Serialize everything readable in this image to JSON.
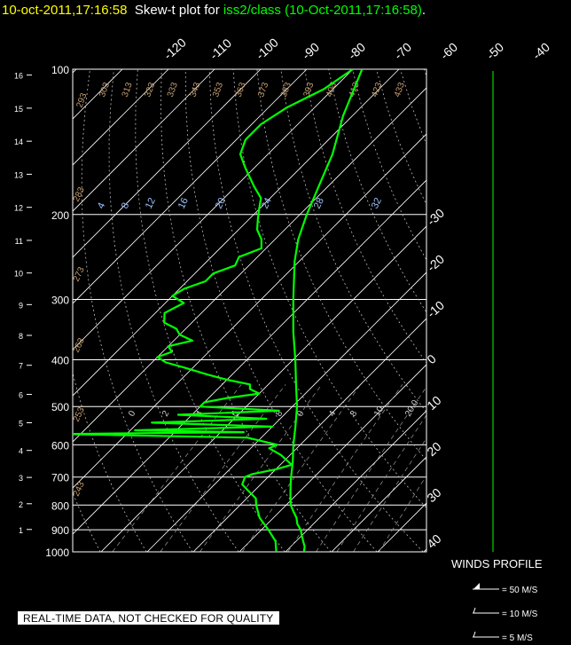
{
  "header": {
    "timestamp": "10-oct-2011,17:16:58",
    "plot_label": "Skew-t plot for",
    "source": "iss2/class (10-Oct-2011,17:16:58)",
    "end": "."
  },
  "quality_note": "REAL-TIME DATA, NOT CHECKED FOR QUALITY",
  "colors": {
    "background": "#000000",
    "grid": "#ffffff",
    "sounding": "#00ff00",
    "dry_adiabat_labels": "#c8a070",
    "mixing_ratio_labels": "#9fc4ff",
    "timestamp": "#ffff00"
  },
  "chart_data": {
    "type": "skew-t",
    "pressure_levels": [
      100,
      200,
      300,
      400,
      500,
      600,
      700,
      800,
      900,
      1000
    ],
    "height_ticks": [
      1,
      2,
      3,
      4,
      5,
      6,
      7,
      8,
      9,
      10,
      11,
      12,
      13,
      14,
      15,
      16
    ],
    "temperature_ticks": [
      -120,
      -110,
      -100,
      -90,
      -80,
      -70,
      -60,
      -50,
      -40,
      -30,
      -20,
      -10,
      0,
      10,
      20,
      30,
      40
    ],
    "dry_adiabat_labels": [
      "293",
      "303",
      "313",
      "323",
      "333",
      "343",
      "353",
      "363",
      "373",
      "383",
      "393",
      "403",
      "413",
      "423",
      "433",
      "283",
      "273",
      "263",
      "253",
      "243"
    ],
    "mixing_ratio_labels": [
      "4",
      "8",
      "12",
      "16",
      "20",
      "24",
      "28",
      "32"
    ],
    "moist_labels": [
      "0",
      "2",
      "4",
      "6",
      "8",
      "0",
      "4",
      "8",
      "10",
      "20.0"
    ],
    "temperature_profile": [
      [
        1000,
        14.0
      ],
      [
        975,
        13.0
      ],
      [
        950,
        11.5
      ],
      [
        925,
        10.0
      ],
      [
        900,
        8.5
      ],
      [
        875,
        6.5
      ],
      [
        850,
        5.0
      ],
      [
        825,
        3.0
      ],
      [
        800,
        1.0
      ],
      [
        775,
        -0.5
      ],
      [
        750,
        -2.0
      ],
      [
        725,
        -3.5
      ],
      [
        700,
        -5.0
      ],
      [
        650,
        -8.0
      ],
      [
        600,
        -11.5
      ],
      [
        550,
        -15.0
      ],
      [
        500,
        -19.0
      ],
      [
        450,
        -24.0
      ],
      [
        400,
        -29.5
      ],
      [
        350,
        -36.0
      ],
      [
        300,
        -43.0
      ],
      [
        250,
        -51.0
      ],
      [
        225,
        -55.0
      ],
      [
        200,
        -58.5
      ],
      [
        175,
        -62.0
      ],
      [
        150,
        -66.0
      ],
      [
        125,
        -72.0
      ],
      [
        100,
        -78.0
      ]
    ],
    "dewpoint_profile": [
      [
        1000,
        8.0
      ],
      [
        950,
        5.5
      ],
      [
        900,
        1.5
      ],
      [
        850,
        -3.0
      ],
      [
        800,
        -6.5
      ],
      [
        775,
        -8.0
      ],
      [
        750,
        -11.0
      ],
      [
        725,
        -14.0
      ],
      [
        700,
        -15.0
      ],
      [
        690,
        -14.0
      ],
      [
        675,
        -10.0
      ],
      [
        660,
        -7.5
      ],
      [
        650,
        -9.0
      ],
      [
        630,
        -12.0
      ],
      [
        610,
        -16.0
      ],
      [
        600,
        -15.0
      ],
      [
        580,
        -23.0
      ],
      [
        570,
        -64.0
      ],
      [
        565,
        -25.0
      ],
      [
        560,
        -49.0
      ],
      [
        550,
        -20.0
      ],
      [
        540,
        -47.0
      ],
      [
        530,
        -23.0
      ],
      [
        520,
        -43.0
      ],
      [
        510,
        -22.0
      ],
      [
        500,
        -40.0
      ],
      [
        490,
        -40.0
      ],
      [
        480,
        -36.0
      ],
      [
        470,
        -30.0
      ],
      [
        460,
        -33.0
      ],
      [
        450,
        -34.0
      ],
      [
        440,
        -40.0
      ],
      [
        430,
        -45.0
      ],
      [
        415,
        -52.0
      ],
      [
        405,
        -57.0
      ],
      [
        395,
        -60.0
      ],
      [
        385,
        -58.0
      ],
      [
        375,
        -60.0
      ],
      [
        365,
        -56.0
      ],
      [
        355,
        -60.0
      ],
      [
        345,
        -62.0
      ],
      [
        335,
        -66.0
      ],
      [
        320,
        -68.0
      ],
      [
        305,
        -66.0
      ],
      [
        295,
        -70.0
      ],
      [
        285,
        -69.0
      ],
      [
        275,
        -66.0
      ],
      [
        265,
        -66.0
      ],
      [
        255,
        -63.0
      ],
      [
        245,
        -64.0
      ],
      [
        235,
        -61.0
      ],
      [
        225,
        -63.0
      ],
      [
        215,
        -66.0
      ],
      [
        205,
        -68.0
      ],
      [
        195,
        -70.0
      ],
      [
        185,
        -72.0
      ],
      [
        175,
        -76.0
      ],
      [
        160,
        -82.0
      ],
      [
        150,
        -86.0
      ],
      [
        140,
        -88.0
      ],
      [
        130,
        -88.0
      ],
      [
        120,
        -86.0
      ],
      [
        110,
        -82.0
      ],
      [
        100,
        -80.0
      ]
    ],
    "winds_profile_label": "WINDS PROFILE",
    "wind_legend": [
      "= 50 M/S",
      "= 10 M/S",
      "= 5 M/S"
    ]
  }
}
